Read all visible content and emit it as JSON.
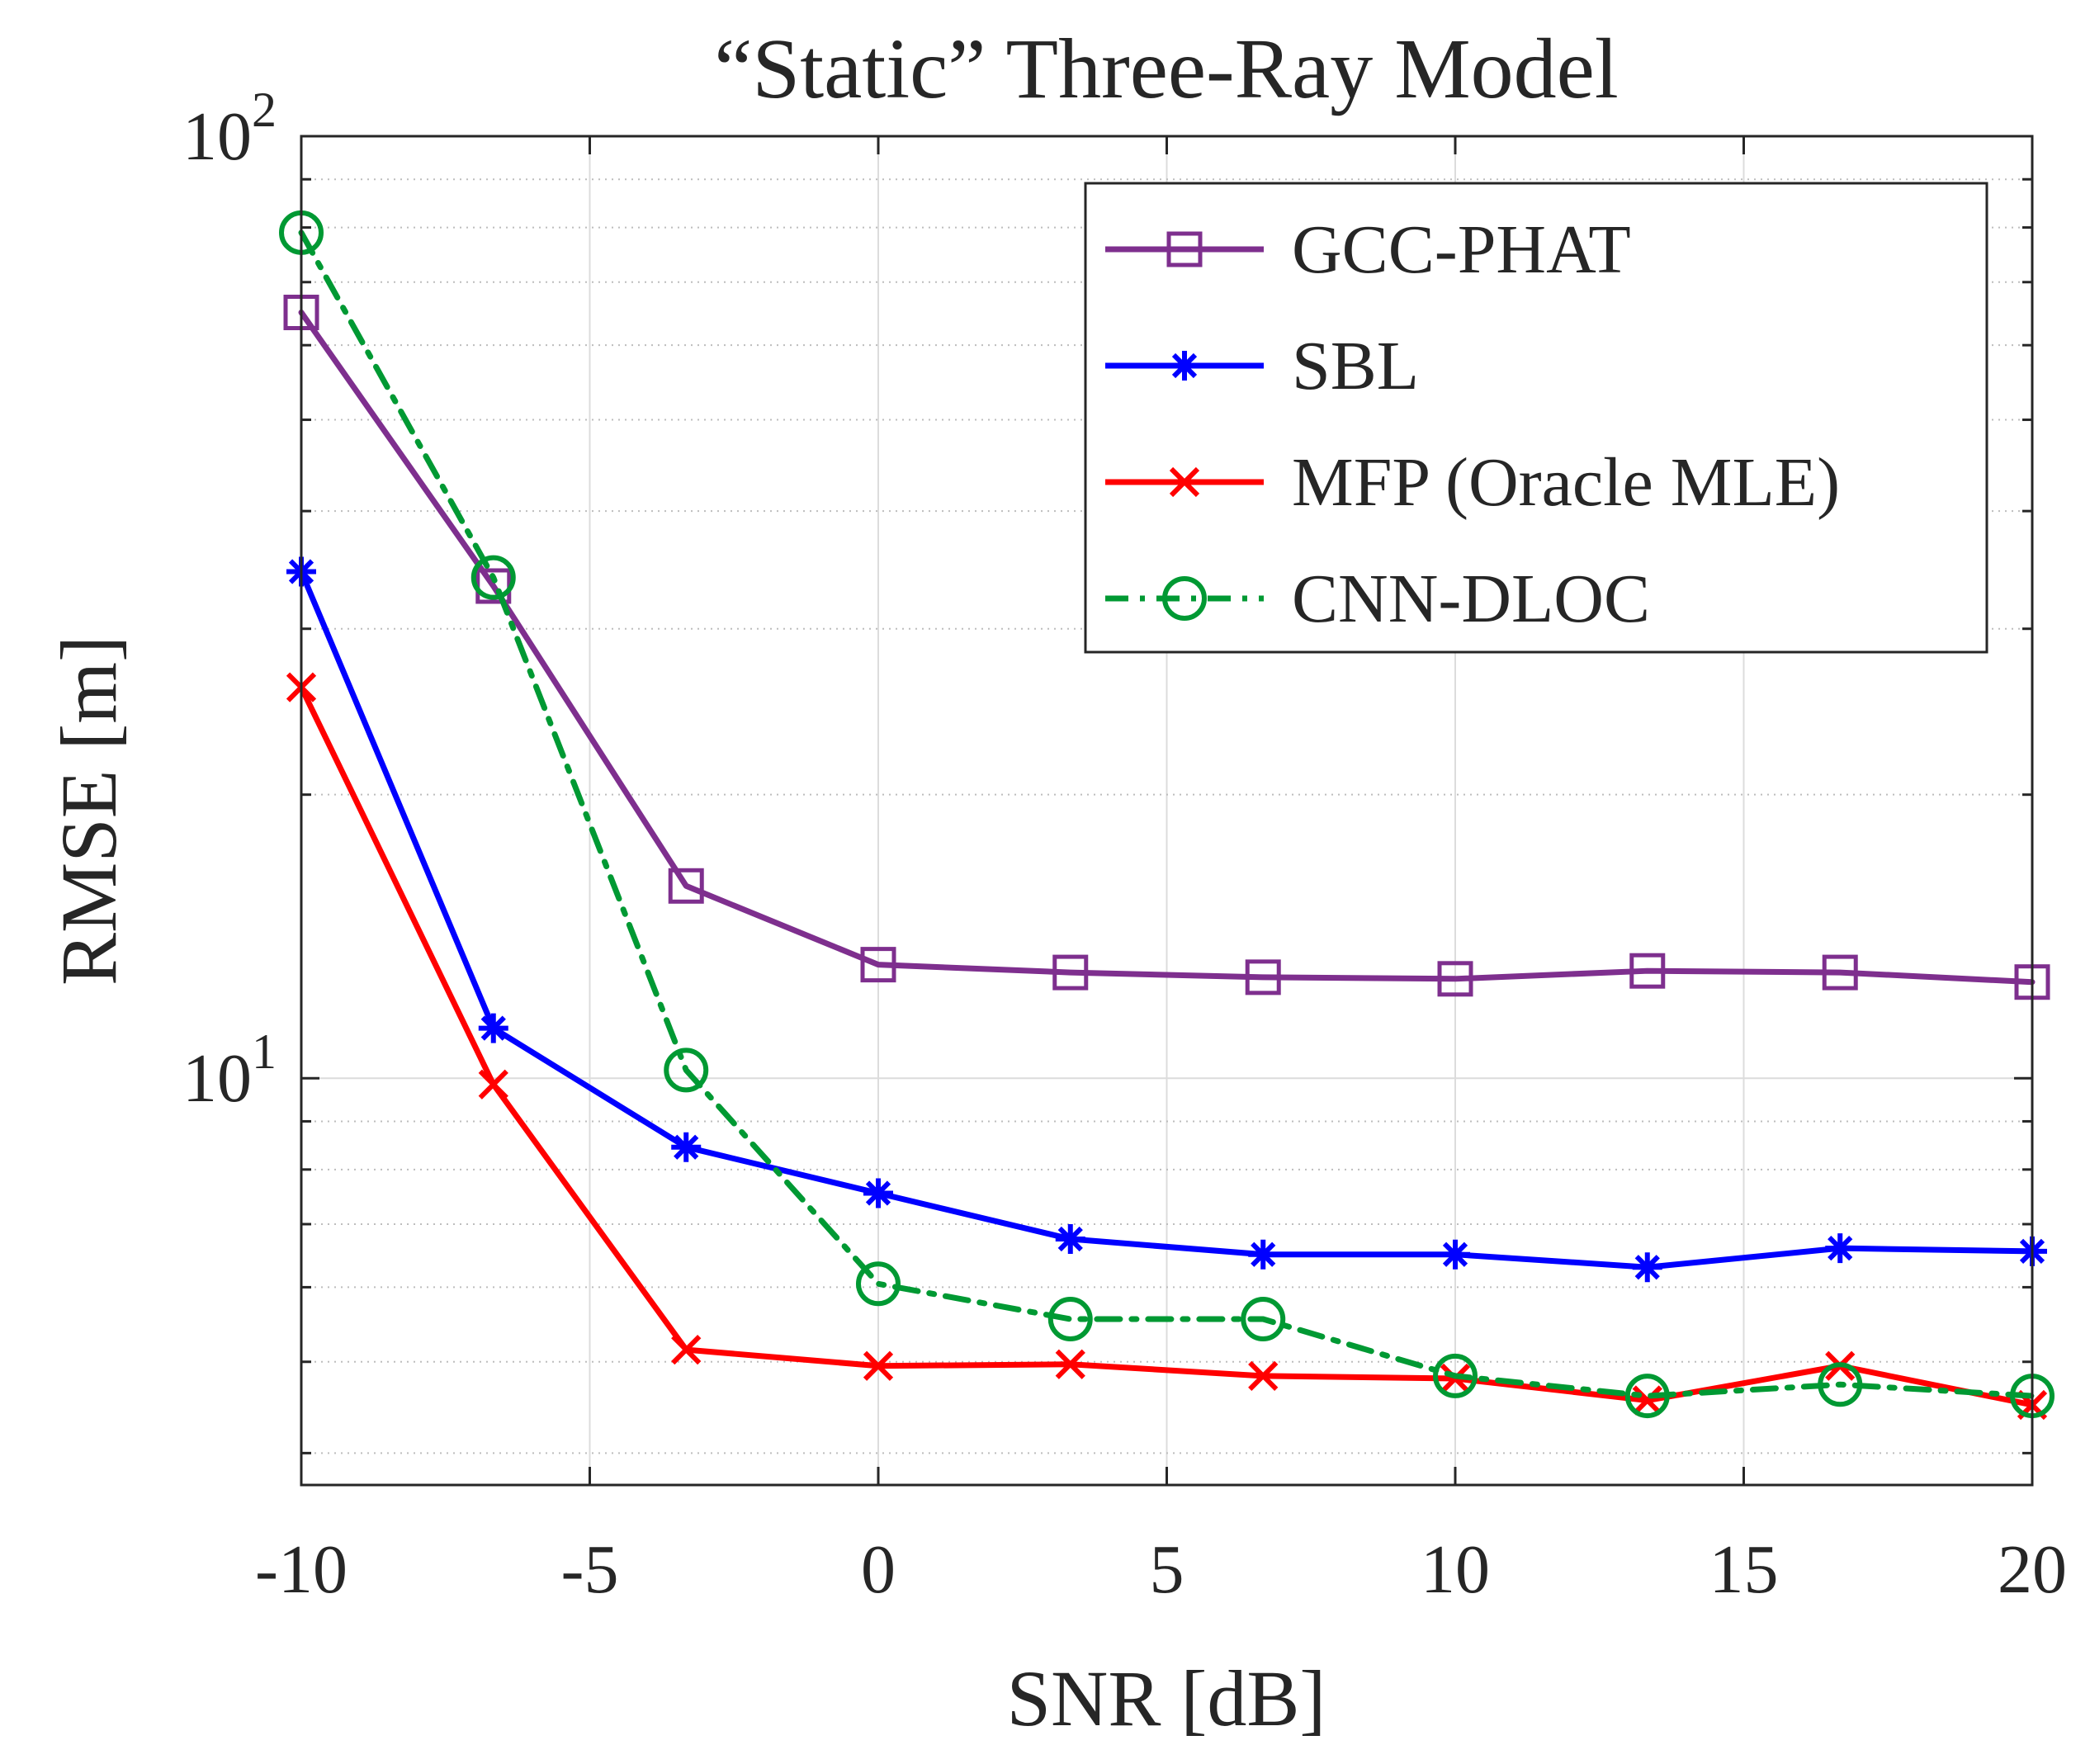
{
  "chart_data": {
    "type": "line",
    "title": "“Static” Three-Ray Model",
    "xlabel": "SNR [dB]",
    "ylabel": "RMSE [m]",
    "xlim": [
      -10,
      20
    ],
    "ylim": [
      3.7,
      100
    ],
    "yscale": "log",
    "grid": true,
    "legend_position": "top-right",
    "xticks": [
      -10,
      -5,
      0,
      5,
      10,
      15,
      20
    ],
    "xtick_labels": [
      "-10",
      "-5",
      "0",
      "5",
      "10",
      "15",
      "20"
    ],
    "yticks_major": [
      10,
      100
    ],
    "ytick_labels": [
      {
        "base": "10",
        "exp": "1"
      },
      {
        "base": "10",
        "exp": "2"
      }
    ],
    "x": [
      -10,
      -6.67,
      -3.33,
      0,
      3.33,
      6.67,
      10,
      13.33,
      16.67,
      20
    ],
    "series": [
      {
        "name": "GCC-PHAT",
        "color": "#7E2F8E",
        "marker": "square",
        "linestyle": "solid",
        "values": [
          65.0,
          33.3,
          16.0,
          13.2,
          12.95,
          12.8,
          12.75,
          13.0,
          12.95,
          12.65
        ]
      },
      {
        "name": "SBL",
        "color": "#0000FF",
        "marker": "asterisk",
        "linestyle": "solid",
        "values": [
          34.5,
          11.3,
          8.45,
          7.55,
          6.75,
          6.5,
          6.5,
          6.3,
          6.6,
          6.55
        ]
      },
      {
        "name": "MFP (Oracle MLE)",
        "color": "#FF0000",
        "marker": "x",
        "linestyle": "solid",
        "values": [
          26.0,
          9.85,
          5.15,
          4.95,
          4.97,
          4.83,
          4.8,
          4.55,
          4.95,
          4.5
        ]
      },
      {
        "name": "CNN-DLOC",
        "color": "#009933",
        "marker": "circle",
        "linestyle": "dashdot",
        "values": [
          79.0,
          34.0,
          10.2,
          6.05,
          5.55,
          5.55,
          4.83,
          4.6,
          4.73,
          4.6
        ]
      }
    ]
  }
}
